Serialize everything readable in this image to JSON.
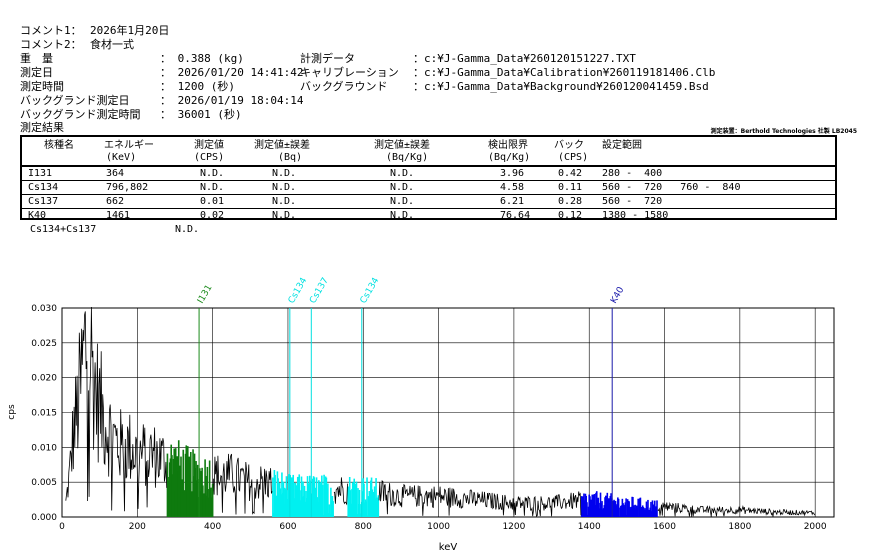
{
  "header": {
    "comment1_label": "コメント1：",
    "comment1_value": "2026年1月20日",
    "comment2_label": "コメント2：",
    "comment2_value": "食材一式",
    "weight_label": "重　量",
    "weight_value": "： 0.388 (kg)",
    "date_label": "測定日",
    "date_value": "： 2026/01/20 14:41:42",
    "time_label": "測定時間",
    "time_value": "： 1200 (秒)",
    "bg_date_label": "バックグランド測定日",
    "bg_date_value": "： 2026/01/19 18:04:14",
    "bg_time_label": "バックグランド測定時間",
    "bg_time_value": "： 36001 (秒)",
    "data_label": "計測データ",
    "data_value": "：c:¥J-Gamma_Data¥260120151227.TXT",
    "calib_label": "キャリブレーション",
    "calib_value": "：c:¥J-Gamma_Data¥Calibration¥260119181406.Clb",
    "bg_label": "バックグラウンド",
    "bg_value": "：c:¥J-Gamma_Data¥Background¥260120041459.Bsd",
    "results_label": "測定結果",
    "device_label": "測定装置：Berthold Technologies 社製 LB2045"
  },
  "table": {
    "headers": [
      "核種名",
      "エネルギー",
      "測定値",
      "測定値±誤差",
      "測定値±誤差",
      "検出限界",
      "バック",
      "設定範囲"
    ],
    "subheaders": [
      "(KeV)",
      "(CPS)",
      "(Bq)",
      "(Bq/Kg)",
      "(Bq/Kg)",
      "(CPS)"
    ],
    "rows": [
      {
        "nuclide": "I131",
        "energy": "364",
        "cps": "N.D.",
        "bq": "N.D.",
        "bqkg": "N.D.",
        "limit": "3.96",
        "back": "0.42",
        "range": "280 -  400"
      },
      {
        "nuclide": "Cs134",
        "energy": "796,802",
        "cps": "N.D.",
        "bq": "N.D.",
        "bqkg": "N.D.",
        "limit": "4.58",
        "back": "0.11",
        "range": "560 -  720   760 -  840"
      },
      {
        "nuclide": "Cs137",
        "energy": "662",
        "cps": "0.01",
        "bq": "N.D.",
        "bqkg": "N.D.",
        "limit": "6.21",
        "back": "0.28",
        "range": "560 -  720"
      },
      {
        "nuclide": "K40",
        "energy": "1461",
        "cps": "0.02",
        "bq": "N.D.",
        "bqkg": "N.D.",
        "limit": "76.64",
        "back": "0.12",
        "range": "1380 - 1580"
      }
    ],
    "sum_label": "Cs134+Cs137",
    "sum_value": "N.D."
  },
  "chart_data": {
    "type": "line",
    "xlabel": "keV",
    "ylabel": "cps",
    "xlim": [
      0,
      2050
    ],
    "ylim": [
      0,
      0.03
    ],
    "xticks": [
      "0",
      "200",
      "400",
      "600",
      "800",
      "1000",
      "1200",
      "1400",
      "1600",
      "1800",
      "2000"
    ],
    "yticks": [
      "0.000",
      "0.005",
      "0.010",
      "0.015",
      "0.020",
      "0.025",
      "0.030"
    ],
    "grid": true,
    "markers": [
      {
        "label": "I131",
        "x": 364,
        "color": "#1a8a1a"
      },
      {
        "label": "Cs134",
        "x": 605,
        "color": "#00e0e0"
      },
      {
        "label": "Cs137",
        "x": 662,
        "color": "#00e0e0"
      },
      {
        "label": "Cs134",
        "x": 796,
        "color": "#00e0e0"
      },
      {
        "label": "K40",
        "x": 1461,
        "color": "#1a1aaa"
      }
    ],
    "regions": [
      {
        "from": 280,
        "to": 400,
        "color": "#0e7a0e"
      },
      {
        "from": 560,
        "to": 720,
        "color": "#00f0f0"
      },
      {
        "from": 760,
        "to": 840,
        "color": "#00f0f0"
      },
      {
        "from": 1380,
        "to": 1580,
        "color": "#0000ee"
      }
    ],
    "series": [
      {
        "color": "#000000",
        "envelope": [
          [
            10,
            0.002
          ],
          [
            20,
            0.006
          ],
          [
            30,
            0.012
          ],
          [
            40,
            0.015
          ],
          [
            50,
            0.019
          ],
          [
            60,
            0.024
          ],
          [
            70,
            0.025
          ],
          [
            80,
            0.022
          ],
          [
            90,
            0.018
          ],
          [
            100,
            0.016
          ],
          [
            120,
            0.013
          ],
          [
            140,
            0.011
          ],
          [
            160,
            0.01
          ],
          [
            180,
            0.01
          ],
          [
            200,
            0.009
          ],
          [
            240,
            0.009
          ],
          [
            280,
            0.008
          ],
          [
            320,
            0.007
          ],
          [
            360,
            0.006
          ],
          [
            400,
            0.006
          ],
          [
            450,
            0.006
          ],
          [
            500,
            0.005
          ],
          [
            550,
            0.005
          ],
          [
            600,
            0.004
          ],
          [
            700,
            0.004
          ],
          [
            800,
            0.004
          ],
          [
            900,
            0.003
          ],
          [
            1000,
            0.003
          ],
          [
            1100,
            0.0025
          ],
          [
            1200,
            0.002
          ],
          [
            1300,
            0.002
          ],
          [
            1400,
            0.0025
          ],
          [
            1500,
            0.002
          ],
          [
            1600,
            0.0015
          ],
          [
            1700,
            0.001
          ],
          [
            1800,
            0.001
          ],
          [
            1900,
            0.0007
          ],
          [
            2000,
            0.0006
          ]
        ]
      }
    ]
  }
}
